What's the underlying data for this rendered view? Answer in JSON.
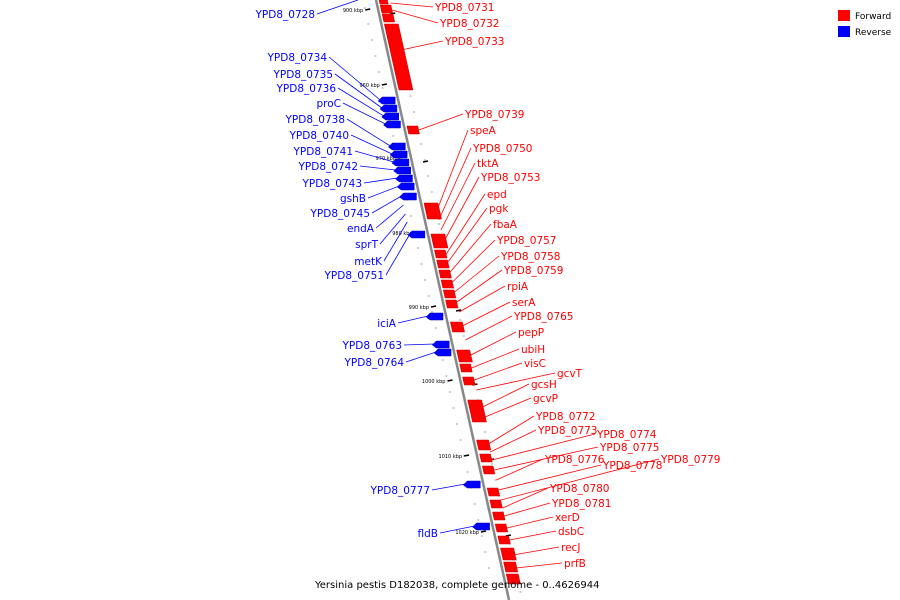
{
  "caption": "Yersinia pestis D182038, complete genome - 0..4626944",
  "legend": [
    {
      "label": "Forward",
      "color": "#ff0000"
    },
    {
      "label": "Reverse",
      "color": "#0000ff"
    }
  ],
  "colors": {
    "forward": "#ff0000",
    "reverse": "#0000ff",
    "backbone": "#888888"
  },
  "ticks": [
    "900 kbp",
    "960 kbp",
    "970 kbp",
    "980 kbp",
    "990 kbp",
    "1000 kbp",
    "1010 kbp",
    "1020 kbp"
  ],
  "forward_genes": [
    "YPD8_0731",
    "YPD8_0732",
    "YPD8_0733",
    "YPD8_0739",
    "speA",
    "YPD8_0750",
    "tktA",
    "YPD8_0753",
    "epd",
    "pgk",
    "fbaA",
    "YPD8_0757",
    "YPD8_0758",
    "YPD8_0759",
    "rpiA",
    "serA",
    "YPD8_0765",
    "pepP",
    "ubiH",
    "visC",
    "gcvT",
    "gcsH",
    "gcvP",
    "YPD8_0772",
    "YPD8_0773",
    "YPD8_0774",
    "YPD8_0775",
    "YPD8_0776",
    "YPD8_0778",
    "YPD8_0779",
    "YPD8_0780",
    "YPD8_0781",
    "xerD",
    "dsbC",
    "recJ",
    "prfB"
  ],
  "reverse_genes": [
    "YPD8_0728",
    "YPD8_0734",
    "YPD8_0735",
    "YPD8_0736",
    "proC",
    "YPD8_0738",
    "YPD8_0740",
    "YPD8_0741",
    "YPD8_0742",
    "YPD8_0743",
    "gshB",
    "YPD8_0745",
    "endA",
    "sprT",
    "metK",
    "YPD8_0751",
    "iciA",
    "YPD8_0763",
    "YPD8_0764",
    "YPD8_0777",
    "fldB"
  ]
}
